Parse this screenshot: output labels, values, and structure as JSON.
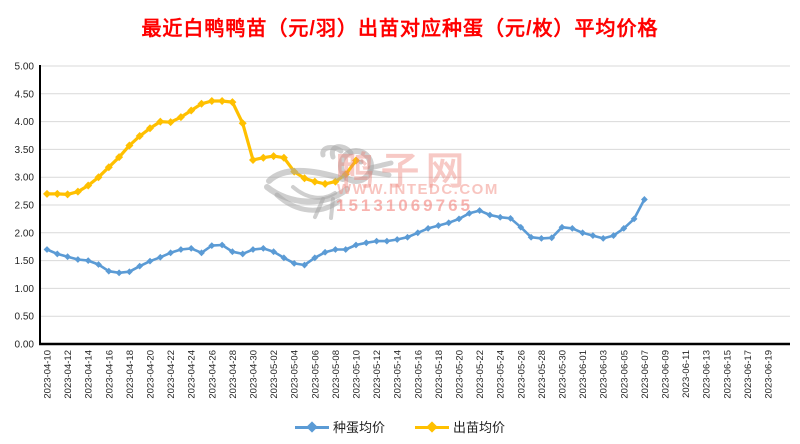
{
  "title": "最近白鸭鸭苗（元/羽）出苗对应种蛋（元/枚）平均价格",
  "title_color": "#FF0000",
  "watermark": {
    "site_name": "鸭子网",
    "url": "WWW.INTEDC.COM",
    "phone": "15131069765",
    "logo": "duck-logo"
  },
  "legend": [
    {
      "label": "种蛋均价",
      "color": "#5B9BD5"
    },
    {
      "label": "出苗均价",
      "color": "#FFC000"
    }
  ],
  "chart_data": {
    "type": "line",
    "title": "最近白鸭鸭苗（元/羽）出苗对应种蛋（元/枚）平均价格",
    "xlabel": "",
    "ylabel": "",
    "ylim": [
      0.0,
      5.0
    ],
    "y_step": 0.5,
    "grid": "horizontal",
    "marker": "diamond",
    "legend_position": "bottom-center",
    "x_interval": "daily",
    "y_ticks": [
      "0.00",
      "0.50",
      "1.00",
      "1.50",
      "2.00",
      "2.50",
      "3.00",
      "3.50",
      "4.00",
      "4.50",
      "5.00"
    ],
    "x_tick_labels": [
      "2023-04-10",
      "2023-04-12",
      "2023-04-14",
      "2023-04-16",
      "2023-04-18",
      "2023-04-20",
      "2023-04-22",
      "2023-04-24",
      "2023-04-26",
      "2023-04-28",
      "2023-04-30",
      "2023-05-02",
      "2023-05-04",
      "2023-05-06",
      "2023-05-08",
      "2023-05-10",
      "2023-05-12",
      "2023-05-14",
      "2023-05-16",
      "2023-05-18",
      "2023-05-20",
      "2023-05-22",
      "2023-05-24",
      "2023-05-26",
      "2023-05-28",
      "2023-05-30",
      "2023-06-01",
      "2023-06-03",
      "2023-06-05",
      "2023-06-07",
      "2023-06-09",
      "2023-06-11",
      "2023-06-13",
      "2023-06-15",
      "2023-06-17",
      "2023-06-19"
    ],
    "x_dates": [
      "2023-04-10",
      "2023-04-11",
      "2023-04-12",
      "2023-04-13",
      "2023-04-14",
      "2023-04-15",
      "2023-04-16",
      "2023-04-17",
      "2023-04-18",
      "2023-04-19",
      "2023-04-20",
      "2023-04-21",
      "2023-04-22",
      "2023-04-23",
      "2023-04-24",
      "2023-04-25",
      "2023-04-26",
      "2023-04-27",
      "2023-04-28",
      "2023-04-29",
      "2023-04-30",
      "2023-05-01",
      "2023-05-02",
      "2023-05-03",
      "2023-05-04",
      "2023-05-05",
      "2023-05-06",
      "2023-05-07",
      "2023-05-08",
      "2023-05-09",
      "2023-05-10",
      "2023-05-11",
      "2023-05-12",
      "2023-05-13",
      "2023-05-14",
      "2023-05-15",
      "2023-05-16",
      "2023-05-17",
      "2023-05-18",
      "2023-05-19",
      "2023-05-20",
      "2023-05-21",
      "2023-05-22",
      "2023-05-23",
      "2023-05-24",
      "2023-05-25",
      "2023-05-26",
      "2023-05-27",
      "2023-05-28",
      "2023-05-29",
      "2023-05-30",
      "2023-05-31",
      "2023-06-01",
      "2023-06-02",
      "2023-06-03",
      "2023-06-04",
      "2023-06-05",
      "2023-06-06",
      "2023-06-07"
    ],
    "series": [
      {
        "name": "种蛋均价",
        "color": "#5B9BD5",
        "start_date": "2023-04-10",
        "end_date": "2023-06-07",
        "values": [
          1.7,
          1.62,
          1.57,
          1.52,
          1.5,
          1.43,
          1.31,
          1.28,
          1.3,
          1.4,
          1.49,
          1.56,
          1.64,
          1.7,
          1.72,
          1.64,
          1.77,
          1.78,
          1.66,
          1.62,
          1.7,
          1.72,
          1.66,
          1.55,
          1.45,
          1.42,
          1.55,
          1.65,
          1.7,
          1.7,
          1.78,
          1.82,
          1.85,
          1.85,
          1.88,
          1.92,
          2.0,
          2.08,
          2.13,
          2.18,
          2.25,
          2.35,
          2.4,
          2.32,
          2.28,
          2.26,
          2.1,
          1.92,
          1.9,
          1.91,
          2.1,
          2.08,
          2.0,
          1.95,
          1.9,
          1.95,
          2.08,
          2.25,
          2.6
        ]
      },
      {
        "name": "出苗均价",
        "color": "#FFC000",
        "start_date": "2023-04-10",
        "end_date": "2023-05-10",
        "values": [
          2.7,
          2.7,
          2.69,
          2.74,
          2.85,
          3.0,
          3.18,
          3.36,
          3.57,
          3.74,
          3.88,
          4.0,
          3.99,
          4.08,
          4.2,
          4.32,
          4.37,
          4.37,
          4.35,
          3.97,
          3.31,
          3.35,
          3.38,
          3.35,
          3.1,
          2.98,
          2.92,
          2.88,
          2.92,
          3.05,
          3.3
        ]
      }
    ]
  }
}
